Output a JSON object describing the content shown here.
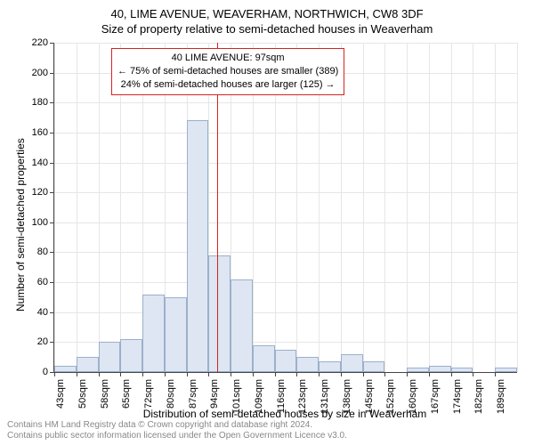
{
  "title_main": "40, LIME AVENUE, WEAVERHAM, NORTHWICH, CW8 3DF",
  "title_sub": "Size of property relative to semi-detached houses in Weaverham",
  "yaxis_title": "Number of semi-detached properties",
  "xaxis_title": "Distribution of semi-detached houses by size in Weaverham",
  "annotation_line1": "40 LIME AVENUE: 97sqm",
  "annotation_line2": "← 75% of semi-detached houses are smaller (389)",
  "annotation_line3": "24% of semi-detached houses are larger (125) →",
  "footer_line1": "Contains HM Land Registry data © Crown copyright and database right 2024.",
  "footer_line2": "Contains public sector information licensed under the Open Government Licence v3.0.",
  "chart": {
    "type": "histogram",
    "ylim": [
      0,
      220
    ],
    "ymajor": 20,
    "bar_fill": "#dde6f2",
    "bar_stroke": "#9cb0cc",
    "grid_color": "#e6e6e6",
    "ref_color": "#d62222",
    "background_color": "#ffffff",
    "title_fontsize": 13,
    "axis_label_fontsize": 12,
    "tick_fontsize": 11,
    "reference_value_sqm": 97,
    "x_start": 43,
    "bin_width_sqm": 7.3,
    "x_labels": [
      "43sqm",
      "50sqm",
      "58sqm",
      "65sqm",
      "72sqm",
      "80sqm",
      "87sqm",
      "94sqm",
      "101sqm",
      "109sqm",
      "116sqm",
      "123sqm",
      "131sqm",
      "138sqm",
      "145sqm",
      "152sqm",
      "160sqm",
      "167sqm",
      "174sqm",
      "182sqm",
      "189sqm"
    ],
    "values": [
      4,
      10,
      20,
      22,
      52,
      50,
      168,
      78,
      62,
      18,
      15,
      10,
      7,
      12,
      7,
      0,
      3,
      4,
      3,
      0,
      3
    ]
  }
}
